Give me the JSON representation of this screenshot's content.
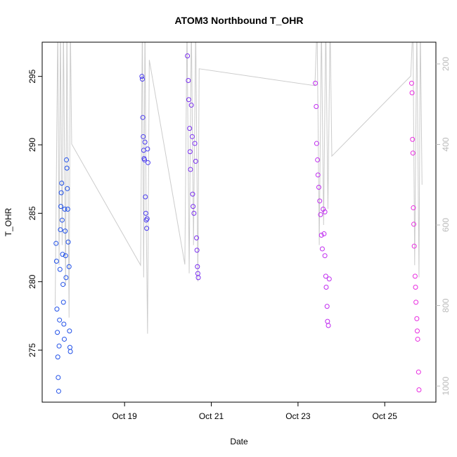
{
  "chart_data": {
    "type": "scatter",
    "title": "ATOM3 Northbound T_OHR",
    "xlabel": "Date",
    "ylabel": "T_OHR",
    "xlim": [
      17.1,
      26.18
    ],
    "ylim": [
      271.2,
      297.5
    ],
    "y2lim": [
      1040,
      146
    ],
    "xticks": [
      {
        "value": 19,
        "label": "Oct 19"
      },
      {
        "value": 21,
        "label": "Oct 21"
      },
      {
        "value": 23,
        "label": "Oct 23"
      },
      {
        "value": 25,
        "label": "Oct 25"
      }
    ],
    "yticks": [
      275,
      280,
      285,
      290,
      295
    ],
    "y2ticks": [
      200,
      400,
      600,
      800,
      1000
    ],
    "series": [
      {
        "type": "scatter",
        "color": "#2050e8",
        "x": [
          17.42,
          17.43,
          17.44,
          17.45,
          17.46,
          17.47,
          17.48,
          17.49,
          17.5,
          17.51,
          17.52,
          17.53,
          17.54,
          17.55,
          17.56,
          17.57,
          17.58,
          17.59,
          17.6,
          17.61,
          17.62,
          17.63,
          17.64,
          17.65,
          17.66,
          17.67,
          17.68,
          17.69,
          17.7,
          17.72,
          17.73,
          17.74,
          17.75
        ],
        "values": [
          282.8,
          281.5,
          278,
          276.3,
          274.5,
          273,
          272,
          275.3,
          277.2,
          280.9,
          283.8,
          285.5,
          286.5,
          287.2,
          284.5,
          282,
          279.8,
          278.5,
          276.9,
          275.8,
          285.3,
          283.7,
          281.9,
          280.3,
          288.9,
          288.3,
          286.8,
          285.3,
          282.9,
          281.1,
          276.4,
          275.2,
          274.9
        ]
      },
      {
        "type": "scatter",
        "color": "#4a3cf0",
        "x": [
          19.4,
          19.41,
          19.42,
          19.43,
          19.44,
          19.45,
          19.46,
          19.47,
          19.48,
          19.49,
          19.5,
          19.51,
          19.52,
          19.53,
          19.54
        ],
        "values": [
          295,
          294.8,
          292,
          290.6,
          289.6,
          289,
          288.9,
          290.2,
          286.2,
          285,
          284.5,
          283.9,
          284.6,
          289.7,
          288.7
        ]
      },
      {
        "type": "scatter",
        "color": "#7a2ef0",
        "x": [
          20.45,
          20.47,
          20.48,
          20.5,
          20.51,
          20.52,
          20.54,
          20.56,
          20.57,
          20.58,
          20.6,
          20.62,
          20.64,
          20.66,
          20.67,
          20.68,
          20.69,
          20.7
        ],
        "values": [
          296.5,
          294.7,
          293.3,
          291.2,
          289.5,
          288.2,
          292.9,
          290.6,
          286.4,
          285.5,
          285,
          290.1,
          288.8,
          283.2,
          282.3,
          281.1,
          280.6,
          280.3
        ]
      },
      {
        "type": "scatter",
        "color": "#c02cf0",
        "x": [
          23.4,
          23.42,
          23.43,
          23.45,
          23.46,
          23.48,
          23.5,
          23.52,
          23.54,
          23.56,
          23.58,
          23.6,
          23.62,
          23.64,
          23.65,
          23.67,
          23.68,
          23.7,
          23.72,
          23.62
        ],
        "values": [
          294.5,
          292.8,
          290.1,
          288.9,
          287.8,
          286.9,
          285.9,
          284.9,
          283.4,
          282.4,
          285.3,
          283.5,
          281.9,
          280.4,
          279.6,
          278.2,
          277.1,
          276.8,
          280.2,
          285.1
        ]
      },
      {
        "type": "scatter",
        "color": "#e82ce0",
        "x": [
          25.62,
          25.63,
          25.64,
          25.65,
          25.66,
          25.67,
          25.68,
          25.7,
          25.71,
          25.72,
          25.74,
          25.75,
          25.76,
          25.78,
          25.79
        ],
        "values": [
          294.5,
          293.8,
          290.4,
          289.4,
          285.4,
          284.2,
          282.6,
          280.4,
          279.6,
          278.5,
          277.3,
          276.4,
          275.8,
          273.4,
          272.1
        ]
      },
      {
        "type": "line",
        "axis": "y2",
        "color": "#cccccc",
        "x": [
          17.4,
          17.46,
          17.49,
          17.52,
          17.56,
          17.59,
          17.64,
          17.67,
          17.72,
          17.75,
          17.78,
          19.37,
          19.41,
          19.44,
          19.47,
          19.5,
          19.53,
          19.57,
          20.39,
          20.44,
          20.49,
          20.54,
          20.59,
          20.64,
          20.69,
          20.72,
          23.39,
          23.44,
          23.49,
          23.54,
          23.59,
          23.64,
          23.69,
          23.74,
          23.78,
          25.6,
          25.65,
          25.69,
          25.74,
          25.79,
          25.82,
          25.86
        ],
        "values": [
          800,
          100,
          700,
          100,
          650,
          100,
          750,
          100,
          830,
          100,
          399,
          700,
          100,
          730,
          100,
          600,
          870,
          190,
          698,
          100,
          720,
          100,
          650,
          100,
          740,
          212,
          254,
          100,
          650,
          100,
          600,
          100,
          560,
          100,
          429,
          230,
          100,
          700,
          100,
          730,
          100,
          500
        ]
      }
    ]
  }
}
